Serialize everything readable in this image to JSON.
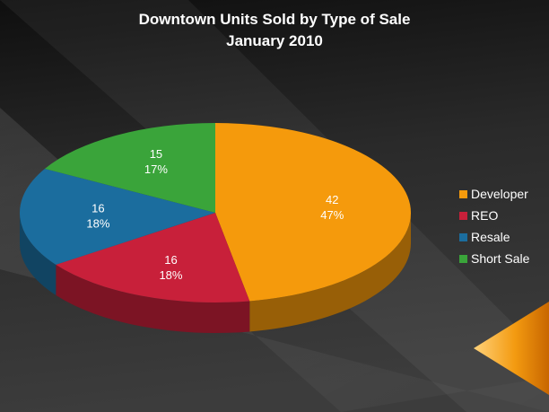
{
  "chart_data": {
    "type": "pie",
    "style": "3d",
    "title": "Downtown Units Sold by Type of Sale",
    "subtitle": "January 2010",
    "categories": [
      "Developer",
      "REO",
      "Resale",
      "Short Sale"
    ],
    "values": [
      42,
      16,
      16,
      15
    ],
    "percent_labels": [
      "47%",
      "18%",
      "18%",
      "17%"
    ],
    "colors": [
      "#F59A0C",
      "#C8203A",
      "#1B6D9E",
      "#3AA43A"
    ],
    "legend_position": "right"
  }
}
